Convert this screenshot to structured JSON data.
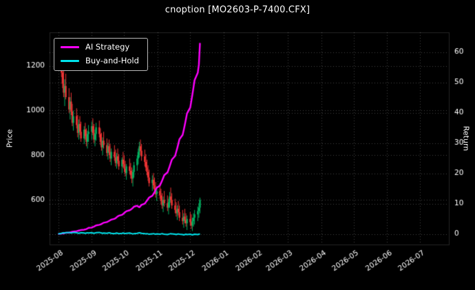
{
  "title": "cnoption [MO2603-P-7400.CFX]",
  "colors": {
    "background": "#000000",
    "text": "#ffffff",
    "grid": "rgba(255,255,255,0.28)",
    "frame": "rgba(255,255,255,0.15)",
    "up": "#00b060",
    "down": "#ef3434",
    "ai_strategy": "#ff00ff",
    "buy_and_hold": "#00e5ee"
  },
  "legend": [
    {
      "label": "AI Strategy",
      "color": "#ff00ff"
    },
    {
      "label": "Buy-and-Hold",
      "color": "#00e5ee"
    }
  ],
  "axes": {
    "left": {
      "label": "Price",
      "ticks": [
        600,
        800,
        1000,
        1200
      ],
      "range": [
        400,
        1350
      ]
    },
    "right": {
      "label": "Return",
      "ticks": [
        0,
        10,
        20,
        30,
        40,
        50,
        60
      ],
      "range": [
        -3.5,
        66.5
      ]
    },
    "x": {
      "tick_labels": [
        "2025-08",
        "2025-09",
        "2025-10",
        "2025-11",
        "2025-12",
        "2026-01",
        "2026-02",
        "2026-03",
        "2026-04",
        "2026-05",
        "2026-06",
        "2026-07"
      ],
      "range": [
        "2025-07-24",
        "2026-07-28"
      ]
    }
  },
  "chart_data": {
    "type": "candlestick+line",
    "title": "cnoption [MO2603-P-7400.CFX]",
    "xlabel": "",
    "ylabel_left": "Price",
    "ylabel_right": "Return",
    "price_ylim": [
      400,
      1350
    ],
    "return_ylim": [
      -3.5,
      66.5
    ],
    "grid": "dotted",
    "legend_position": "upper-left",
    "candles": {
      "dates": [
        "2025-08-01",
        "2025-08-04",
        "2025-08-05",
        "2025-08-06",
        "2025-08-07",
        "2025-08-08",
        "2025-08-11",
        "2025-08-12",
        "2025-08-13",
        "2025-08-14",
        "2025-08-15",
        "2025-08-18",
        "2025-08-19",
        "2025-08-20",
        "2025-08-21",
        "2025-08-22",
        "2025-08-25",
        "2025-08-26",
        "2025-08-27",
        "2025-08-28",
        "2025-08-29",
        "2025-09-01",
        "2025-09-02",
        "2025-09-03",
        "2025-09-04",
        "2025-09-05",
        "2025-09-08",
        "2025-09-09",
        "2025-09-10",
        "2025-09-11",
        "2025-09-12",
        "2025-09-15",
        "2025-09-16",
        "2025-09-17",
        "2025-09-18",
        "2025-09-19",
        "2025-09-22",
        "2025-09-23",
        "2025-09-24",
        "2025-09-25",
        "2025-09-26",
        "2025-09-29",
        "2025-09-30",
        "2025-10-01",
        "2025-10-02",
        "2025-10-03",
        "2025-10-06",
        "2025-10-07",
        "2025-10-08",
        "2025-10-09",
        "2025-10-10",
        "2025-10-13",
        "2025-10-14",
        "2025-10-15",
        "2025-10-16",
        "2025-10-17",
        "2025-10-20",
        "2025-10-21",
        "2025-10-22",
        "2025-10-23",
        "2025-10-24",
        "2025-10-27",
        "2025-10-28",
        "2025-10-29",
        "2025-10-30",
        "2025-10-31",
        "2025-11-03",
        "2025-11-04",
        "2025-11-05",
        "2025-11-06",
        "2025-11-07",
        "2025-11-10",
        "2025-11-11",
        "2025-11-12",
        "2025-11-13",
        "2025-11-14",
        "2025-11-17",
        "2025-11-18",
        "2025-11-19",
        "2025-11-20",
        "2025-11-21",
        "2025-11-24",
        "2025-11-25",
        "2025-11-26",
        "2025-11-27",
        "2025-11-28",
        "2025-12-01",
        "2025-12-02",
        "2025-12-03",
        "2025-12-04",
        "2025-12-05",
        "2025-12-08",
        "2025-12-09",
        "2025-12-10"
      ],
      "open": [
        1240,
        1200,
        1170,
        1120,
        1080,
        1110,
        1060,
        1005,
        1040,
        995,
        945,
        975,
        935,
        900,
        940,
        905,
        875,
        915,
        885,
        860,
        895,
        905,
        930,
        900,
        870,
        895,
        925,
        895,
        860,
        835,
        865,
        845,
        810,
        840,
        815,
        785,
        815,
        790,
        765,
        795,
        775,
        750,
        780,
        760,
        740,
        720,
        750,
        730,
        710,
        695,
        725,
        755,
        785,
        815,
        840,
        820,
        795,
        770,
        745,
        725,
        700,
        675,
        690,
        665,
        645,
        625,
        640,
        620,
        595,
        575,
        600,
        585,
        565,
        590,
        615,
        600,
        575,
        555,
        540,
        560,
        545,
        520,
        505,
        525,
        510,
        495,
        515,
        500,
        485,
        505,
        520,
        535,
        550,
        565
      ],
      "high": [
        1285,
        1260,
        1230,
        1190,
        1140,
        1165,
        1100,
        1060,
        1080,
        1030,
        1000,
        1010,
        980,
        960,
        975,
        950,
        930,
        945,
        920,
        910,
        935,
        950,
        965,
        940,
        915,
        945,
        955,
        920,
        900,
        880,
        905,
        875,
        855,
        870,
        850,
        830,
        845,
        825,
        810,
        830,
        805,
        790,
        815,
        800,
        775,
        760,
        785,
        765,
        745,
        735,
        770,
        800,
        830,
        860,
        870,
        850,
        825,
        805,
        780,
        755,
        735,
        710,
        720,
        700,
        680,
        660,
        675,
        650,
        630,
        615,
        640,
        620,
        605,
        635,
        655,
        630,
        605,
        590,
        575,
        595,
        575,
        555,
        540,
        560,
        540,
        530,
        545,
        535,
        520,
        540,
        555,
        570,
        585,
        610
      ],
      "low": [
        1180,
        1150,
        1100,
        1060,
        1020,
        1050,
        990,
        960,
        980,
        930,
        910,
        920,
        880,
        870,
        890,
        860,
        850,
        870,
        840,
        830,
        860,
        870,
        890,
        855,
        840,
        865,
        880,
        845,
        820,
        800,
        830,
        795,
        780,
        800,
        770,
        755,
        775,
        750,
        740,
        760,
        735,
        720,
        745,
        725,
        705,
        690,
        715,
        695,
        675,
        660,
        700,
        730,
        760,
        790,
        800,
        775,
        750,
        730,
        710,
        685,
        660,
        640,
        650,
        630,
        610,
        595,
        605,
        580,
        560,
        545,
        570,
        550,
        535,
        565,
        585,
        560,
        540,
        525,
        510,
        530,
        505,
        490,
        475,
        495,
        480,
        465,
        485,
        470,
        460,
        480,
        490,
        505,
        520,
        540
      ],
      "close": [
        1200,
        1170,
        1120,
        1080,
        1110,
        1060,
        1005,
        1040,
        995,
        945,
        975,
        935,
        900,
        940,
        905,
        875,
        915,
        885,
        860,
        895,
        905,
        930,
        900,
        870,
        895,
        925,
        895,
        860,
        835,
        865,
        845,
        810,
        840,
        815,
        785,
        815,
        790,
        765,
        795,
        775,
        750,
        780,
        760,
        740,
        720,
        750,
        730,
        710,
        695,
        725,
        755,
        785,
        815,
        840,
        820,
        795,
        770,
        745,
        725,
        700,
        675,
        690,
        665,
        645,
        625,
        640,
        620,
        595,
        575,
        600,
        585,
        565,
        590,
        615,
        600,
        575,
        555,
        540,
        560,
        545,
        520,
        505,
        525,
        510,
        495,
        515,
        500,
        485,
        505,
        520,
        535,
        550,
        565,
        600
      ]
    },
    "series": [
      {
        "name": "AI Strategy",
        "axis": "right",
        "color": "#ff00ff",
        "width": 2.4,
        "values": [
          0.0,
          0.1,
          0.2,
          0.2,
          0.3,
          0.4,
          0.4,
          0.5,
          0.6,
          0.7,
          0.8,
          0.9,
          1.0,
          1.1,
          1.2,
          1.3,
          1.4,
          1.5,
          1.6,
          1.8,
          2.0,
          2.1,
          2.3,
          2.4,
          2.6,
          2.8,
          3.0,
          3.1,
          3.3,
          3.5,
          3.7,
          3.9,
          4.1,
          4.3,
          4.5,
          4.7,
          5.0,
          5.2,
          5.5,
          5.8,
          6.0,
          6.3,
          6.6,
          6.9,
          7.2,
          7.5,
          7.8,
          8.0,
          8.3,
          8.6,
          9.0,
          9.3,
          9.0,
          8.8,
          9.2,
          9.6,
          10.0,
          10.5,
          11.0,
          11.5,
          12.0,
          12.6,
          13.2,
          13.8,
          14.5,
          15.2,
          16.0,
          16.8,
          17.6,
          18.5,
          19.4,
          20.3,
          21.3,
          22.3,
          23.4,
          24.5,
          25.7,
          27.0,
          28.3,
          29.7,
          31.2,
          32.7,
          34.3,
          36.0,
          37.8,
          39.7,
          41.7,
          43.8,
          46.0,
          48.3,
          50.7,
          53.2,
          55.9,
          63.0
        ]
      },
      {
        "name": "Buy-and-Hold",
        "axis": "right",
        "color": "#00e5ee",
        "width": 2.0,
        "values": [
          0.0,
          0.2,
          0.3,
          0.4,
          0.3,
          0.4,
          0.5,
          0.4,
          0.3,
          0.4,
          0.5,
          0.4,
          0.3,
          0.2,
          0.3,
          0.4,
          0.3,
          0.2,
          0.3,
          0.4,
          0.3,
          0.4,
          0.3,
          0.2,
          0.3,
          0.4,
          0.5,
          0.4,
          0.3,
          0.2,
          0.3,
          0.2,
          0.3,
          0.4,
          0.3,
          0.2,
          0.1,
          0.2,
          0.3,
          0.2,
          0.1,
          0.2,
          0.3,
          0.2,
          0.1,
          0.2,
          0.3,
          0.2,
          0.1,
          0.0,
          0.1,
          0.2,
          0.3,
          0.4,
          0.3,
          0.2,
          0.1,
          0.0,
          0.1,
          0.0,
          -0.1,
          0.0,
          0.1,
          0.0,
          -0.1,
          0.0,
          -0.1,
          0.0,
          0.1,
          0.0,
          -0.1,
          -0.2,
          -0.1,
          0.0,
          0.1,
          0.0,
          -0.1,
          -0.2,
          -0.1,
          0.0,
          -0.1,
          -0.2,
          -0.3,
          -0.2,
          -0.1,
          -0.2,
          -0.1,
          -0.2,
          -0.3,
          -0.2,
          -0.1,
          -0.2,
          -0.1,
          0.0
        ]
      }
    ]
  }
}
